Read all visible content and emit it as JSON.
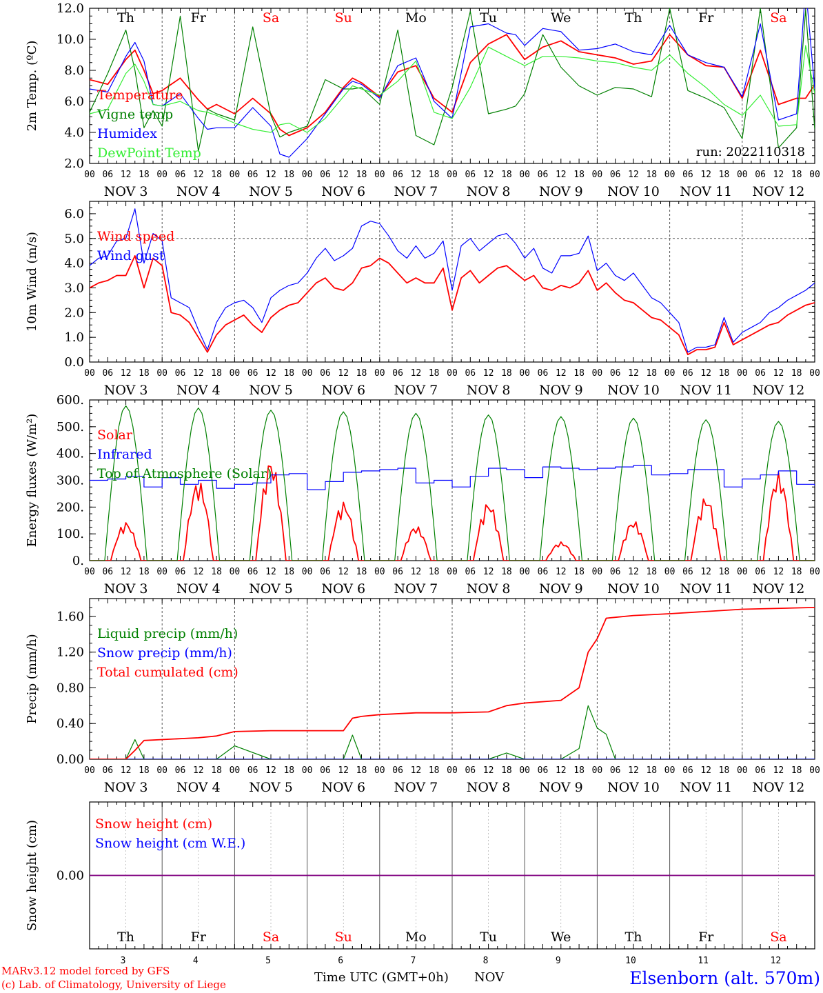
{
  "days": [
    {
      "abbr": "Th",
      "date": "NOV  3",
      "num": "3",
      "weekend": false
    },
    {
      "abbr": "Fr",
      "date": "NOV  4",
      "num": "4",
      "weekend": false
    },
    {
      "abbr": "Sa",
      "date": "NOV  5",
      "num": "5",
      "weekend": true
    },
    {
      "abbr": "Su",
      "date": "NOV  6",
      "num": "6",
      "weekend": true
    },
    {
      "abbr": "Mo",
      "date": "NOV  7",
      "num": "7",
      "weekend": false
    },
    {
      "abbr": "Tu",
      "date": "NOV  8",
      "num": "8",
      "weekend": false
    },
    {
      "abbr": "We",
      "date": "NOV  9",
      "num": "9",
      "weekend": false
    },
    {
      "abbr": "Th",
      "date": "NOV 10",
      "num": "10",
      "weekend": false
    },
    {
      "abbr": "Fr",
      "date": "NOV 11",
      "num": "11",
      "weekend": false
    },
    {
      "abbr": "Sa",
      "date": "NOV 12",
      "num": "12",
      "weekend": true
    }
  ],
  "hour_labels": [
    "00",
    "06",
    "12",
    "18"
  ],
  "colors": {
    "red": "#ff0000",
    "green": "#008000",
    "blue": "#0000ff",
    "lightgreen": "#33ee33",
    "purple": "#800080",
    "grid": "#555555"
  },
  "footer": {
    "model": "MARv3.12 model forced by GFS",
    "credit": "(c) Lab. of Climatology, University of Liege",
    "axis_title": "Time UTC (GMT+0h)",
    "month": "NOV",
    "station": "Elsenborn (alt. 570m)"
  },
  "chart_data": [
    {
      "type": "line",
      "ylabel": "2m Temp. (ºC)",
      "ylim": [
        2,
        12
      ],
      "yticks": [
        "2.0",
        "4.0",
        "6.0",
        "8.0",
        "10.0",
        "12.0"
      ],
      "annotation": "run: 2022110318",
      "hours": [
        0,
        6,
        12,
        15,
        18,
        21,
        24,
        30,
        36,
        39,
        42,
        48,
        54,
        60,
        63,
        66,
        72,
        78,
        84,
        87,
        90,
        96,
        102,
        108,
        114,
        120,
        126,
        132,
        138,
        141,
        144,
        150,
        156,
        162,
        168,
        174,
        180,
        186,
        192,
        198,
        204,
        210,
        216,
        222,
        228,
        234,
        237,
        240
      ],
      "series": [
        {
          "name": "Temperature",
          "color": "red",
          "values": [
            7.4,
            7.1,
            8.7,
            9.3,
            8.0,
            6.5,
            6.7,
            7.5,
            6.1,
            5.5,
            5.8,
            5.2,
            6.2,
            5.2,
            4.2,
            3.8,
            4.3,
            5.3,
            6.9,
            7.5,
            7.2,
            6.3,
            7.9,
            8.3,
            6.2,
            5.3,
            8.5,
            9.7,
            10.3,
            9.5,
            8.7,
            9.5,
            9.9,
            9.2,
            9.0,
            8.8,
            8.4,
            8.6,
            10.3,
            9.0,
            8.3,
            8.2,
            6.2,
            9.3,
            5.8,
            6.2,
            6.2,
            7.1
          ]
        },
        {
          "name": "Vigne temp",
          "color": "green",
          "values": [
            5.3,
            7.8,
            10.6,
            8.0,
            4.3,
            5.4,
            4.4,
            11.5,
            2.8,
            5.5,
            5.2,
            4.8,
            10.8,
            5.1,
            3.7,
            4.0,
            4.4,
            7.4,
            6.8,
            6.8,
            6.9,
            5.8,
            10.6,
            3.8,
            3.2,
            6.9,
            11.8,
            5.2,
            5.5,
            5.7,
            6.5,
            10.3,
            8.2,
            7.0,
            6.4,
            6.9,
            6.8,
            6.3,
            12.0,
            6.7,
            6.2,
            5.6,
            3.6,
            12.0,
            3.0,
            4.3,
            11.9,
            4.2
          ]
        },
        {
          "name": "Humidex",
          "color": "blue",
          "values": [
            6.8,
            6.6,
            8.9,
            9.8,
            8.6,
            5.8,
            5.7,
            6.5,
            4.9,
            4.2,
            4.3,
            4.3,
            5.6,
            4.4,
            2.6,
            2.4,
            3.6,
            5.2,
            6.8,
            7.3,
            7.1,
            6.2,
            8.3,
            8.8,
            6.0,
            4.9,
            10.8,
            11.0,
            10.4,
            10.3,
            9.6,
            10.7,
            10.5,
            9.3,
            9.4,
            9.7,
            9.2,
            9.0,
            10.9,
            9.0,
            8.5,
            8.2,
            6.3,
            11.0,
            4.8,
            5.2,
            13.4,
            6.8
          ]
        },
        {
          "name": "DewPoint Temp",
          "color": "lightgreen",
          "values": [
            5.2,
            5.5,
            7.8,
            8.4,
            7.3,
            5.8,
            5.7,
            6.0,
            5.4,
            5.3,
            5.1,
            4.6,
            4.2,
            4.0,
            4.5,
            4.6,
            4.0,
            4.9,
            6.3,
            7.0,
            6.8,
            6.4,
            7.3,
            8.6,
            5.3,
            4.9,
            6.9,
            9.5,
            8.9,
            8.6,
            8.3,
            8.9,
            8.9,
            8.8,
            8.6,
            8.5,
            8.2,
            8.0,
            9.0,
            7.8,
            6.9,
            5.8,
            5.1,
            6.4,
            4.4,
            4.5,
            9.6,
            6.5
          ]
        }
      ]
    },
    {
      "type": "line",
      "ylabel": "10m Wind (m/s)",
      "ylim": [
        0,
        6.5
      ],
      "yticks": [
        "0.0",
        "1.0",
        "2.0",
        "3.0",
        "4.0",
        "5.0",
        "6.0"
      ],
      "ref_line": 5,
      "hours": [
        0,
        3,
        6,
        9,
        12,
        15,
        18,
        21,
        24,
        27,
        30,
        33,
        36,
        39,
        42,
        45,
        48,
        51,
        54,
        57,
        60,
        63,
        66,
        69,
        72,
        75,
        78,
        81,
        84,
        87,
        90,
        93,
        96,
        99,
        102,
        105,
        108,
        111,
        114,
        117,
        120,
        123,
        126,
        129,
        132,
        135,
        138,
        141,
        144,
        147,
        150,
        153,
        156,
        159,
        162,
        165,
        168,
        171,
        174,
        177,
        180,
        183,
        186,
        189,
        192,
        195,
        198,
        201,
        204,
        207,
        210,
        213,
        216,
        219,
        222,
        225,
        228,
        231,
        234,
        237,
        240
      ],
      "series": [
        {
          "name": "Wind speed",
          "color": "red",
          "values": [
            3.0,
            3.2,
            3.3,
            3.5,
            3.5,
            4.3,
            3.0,
            4.2,
            3.9,
            2.0,
            1.9,
            1.6,
            1.0,
            0.4,
            1.1,
            1.5,
            1.7,
            1.9,
            1.5,
            1.2,
            1.8,
            2.1,
            2.3,
            2.4,
            2.8,
            3.2,
            3.4,
            3.0,
            2.9,
            3.2,
            3.8,
            3.9,
            4.2,
            4.0,
            3.6,
            3.2,
            3.4,
            3.2,
            3.2,
            3.8,
            2.1,
            3.4,
            3.7,
            3.2,
            3.5,
            3.8,
            3.9,
            3.6,
            3.3,
            3.5,
            3.0,
            2.9,
            3.1,
            3.0,
            3.2,
            3.7,
            2.9,
            3.2,
            2.8,
            2.5,
            2.4,
            2.1,
            1.8,
            1.7,
            1.4,
            1.1,
            0.3,
            0.5,
            0.5,
            0.6,
            1.6,
            0.7,
            0.9,
            1.1,
            1.3,
            1.5,
            1.6,
            1.9,
            2.1,
            2.3,
            2.4
          ]
        },
        {
          "name": "Wind gust",
          "color": "blue",
          "values": [
            3.9,
            4.2,
            4.3,
            4.9,
            5.0,
            6.2,
            4.0,
            5.2,
            4.9,
            2.6,
            2.4,
            2.2,
            1.3,
            0.5,
            1.6,
            2.2,
            2.4,
            2.5,
            2.2,
            1.6,
            2.6,
            2.9,
            3.1,
            3.2,
            3.6,
            4.2,
            4.6,
            4.1,
            4.3,
            4.6,
            5.5,
            5.7,
            5.6,
            5.1,
            4.5,
            4.2,
            4.7,
            4.2,
            4.4,
            4.9,
            2.9,
            4.7,
            5.0,
            4.5,
            4.8,
            5.1,
            5.2,
            4.8,
            4.2,
            4.6,
            3.8,
            3.6,
            4.3,
            4.3,
            4.4,
            5.1,
            3.7,
            4.0,
            3.5,
            3.3,
            3.6,
            3.1,
            2.6,
            2.4,
            2.0,
            1.6,
            0.4,
            0.6,
            0.6,
            0.7,
            1.8,
            0.8,
            1.2,
            1.4,
            1.6,
            2.0,
            2.2,
            2.5,
            2.7,
            2.9,
            3.2
          ]
        }
      ]
    },
    {
      "type": "line",
      "ylabel": "Energy fluxes (W/m²)",
      "ylim": [
        0,
        600
      ],
      "yticks": [
        "0.",
        "100.",
        "200.",
        "300.",
        "400.",
        "500.",
        "600."
      ],
      "daily_max": {
        "solar": [
          145,
          300,
          380,
          220,
          130,
          220,
          70,
          150,
          240,
          330
        ],
        "toa": [
          578,
          570,
          562,
          556,
          550,
          544,
          538,
          532,
          526,
          520
        ]
      },
      "series": [
        {
          "name": "Solar",
          "color": "red",
          "values": [
            0,
            145,
            0,
            300,
            0,
            380,
            0,
            220,
            0,
            130,
            0,
            220,
            0,
            70,
            0,
            150,
            0,
            240,
            0,
            330,
            0
          ]
        },
        {
          "name": "Infrared",
          "color": "blue",
          "hours": [
            0,
            6,
            12,
            18,
            24,
            30,
            36,
            42,
            48,
            54,
            60,
            66,
            72,
            78,
            84,
            90,
            96,
            102,
            108,
            114,
            120,
            126,
            132,
            138,
            144,
            150,
            156,
            162,
            168,
            174,
            180,
            186,
            192,
            198,
            204,
            210,
            216,
            222,
            228,
            234,
            240
          ],
          "values": [
            300,
            305,
            315,
            275,
            310,
            285,
            300,
            270,
            285,
            290,
            320,
            325,
            265,
            295,
            330,
            335,
            340,
            345,
            290,
            300,
            275,
            315,
            345,
            340,
            310,
            350,
            345,
            340,
            345,
            350,
            355,
            320,
            325,
            340,
            340,
            275,
            305,
            320,
            335,
            285,
            278
          ]
        },
        {
          "name": "Top of Atmosphere (Solar)",
          "color": "green",
          "values": [
            0,
            578,
            0,
            570,
            0,
            562,
            0,
            556,
            0,
            550,
            0,
            544,
            0,
            538,
            0,
            532,
            0,
            526,
            0,
            520,
            0
          ]
        }
      ]
    },
    {
      "type": "line",
      "ylabel": "Precip (mm/h)",
      "ylim": [
        0,
        1.8
      ],
      "yticks": [
        "0.00",
        "0.40",
        "0.80",
        "1.20",
        "1.60"
      ],
      "hours": [
        0,
        12,
        15,
        18,
        24,
        36,
        42,
        48,
        60,
        72,
        84,
        87,
        90,
        96,
        108,
        120,
        132,
        138,
        144,
        156,
        162,
        165,
        168,
        171,
        174,
        180,
        192,
        216,
        240
      ],
      "series": [
        {
          "name": "Liquid precip (mm/h)",
          "color": "green",
          "values": [
            0,
            0,
            0.22,
            0,
            0,
            0,
            0,
            0.15,
            0,
            0,
            0,
            0.27,
            0,
            0,
            0,
            0,
            0,
            0.07,
            0,
            0,
            0.12,
            0.6,
            0.35,
            0.28,
            0,
            0,
            0,
            0,
            0
          ]
        },
        {
          "name": "Snow precip (mm/h)",
          "color": "blue",
          "values": [
            0,
            0,
            0,
            0,
            0,
            0,
            0,
            0,
            0,
            0,
            0,
            0,
            0,
            0,
            0,
            0,
            0,
            0,
            0,
            0,
            0,
            0,
            0,
            0,
            0,
            0,
            0,
            0,
            0
          ]
        },
        {
          "name": "Total cumulated (cm)",
          "color": "red",
          "values": [
            0,
            0,
            0.1,
            0.21,
            0.22,
            0.24,
            0.26,
            0.31,
            0.32,
            0.32,
            0.32,
            0.46,
            0.48,
            0.5,
            0.52,
            0.52,
            0.53,
            0.6,
            0.63,
            0.66,
            0.8,
            1.2,
            1.35,
            1.58,
            1.59,
            1.61,
            1.63,
            1.68,
            1.7
          ]
        }
      ]
    },
    {
      "type": "line",
      "ylabel": "Snow height (cm)",
      "ylim": [
        -1,
        1
      ],
      "yticks": [
        "0.00"
      ],
      "hours": [
        0,
        240
      ],
      "series": [
        {
          "name": "Snow height (cm)",
          "color": "red",
          "values": [
            0,
            0
          ]
        },
        {
          "name": "Snow height (cm W.E.)",
          "color": "blue",
          "values": [
            0,
            0
          ]
        }
      ]
    }
  ]
}
